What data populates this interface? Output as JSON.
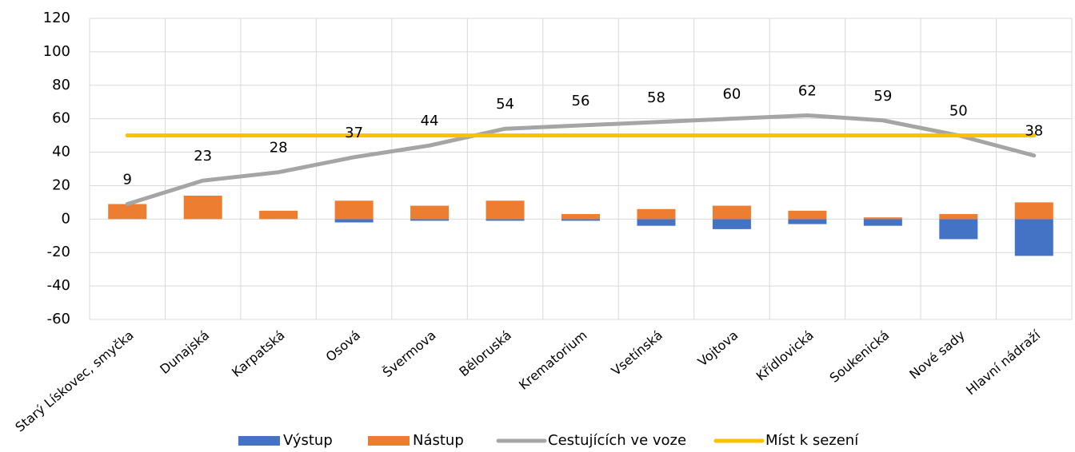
{
  "chart_data": {
    "type": "bar",
    "categories": [
      "Starý Lískovec, smyčka",
      "Dunajská",
      "Karpatská",
      "Osová",
      "Švermova",
      "Běloruská",
      "Krematorium",
      "Vsetínská",
      "Vojtova",
      "Křídlovická",
      "Soukenická",
      "Nové sady",
      "Hlavní nádraží"
    ],
    "series": [
      {
        "name": "Výstup",
        "type": "bar",
        "color": "#4472c4",
        "values": [
          0,
          0,
          0,
          -2,
          -1,
          -1,
          -1,
          -4,
          -6,
          -3,
          -4,
          -12,
          -22
        ]
      },
      {
        "name": "Nástup",
        "type": "bar",
        "color": "#ed7d31",
        "values": [
          9,
          14,
          5,
          11,
          8,
          11,
          3,
          6,
          8,
          5,
          1,
          3,
          10
        ]
      },
      {
        "name": "Cestujících ve voze",
        "type": "line",
        "color": "#a5a5a5",
        "data_labels": true,
        "values": [
          9,
          23,
          28,
          37,
          44,
          54,
          56,
          58,
          60,
          62,
          59,
          50,
          38
        ]
      },
      {
        "name": "Míst k sezení",
        "type": "line",
        "color": "#ffc000",
        "values": [
          50,
          50,
          50,
          50,
          50,
          50,
          50,
          50,
          50,
          50,
          50,
          50,
          50
        ]
      }
    ],
    "ylim": [
      -60,
      120
    ],
    "yticks": [
      -60,
      -40,
      -20,
      0,
      20,
      40,
      60,
      80,
      100,
      120
    ],
    "grid": true,
    "legend": "bottom"
  }
}
